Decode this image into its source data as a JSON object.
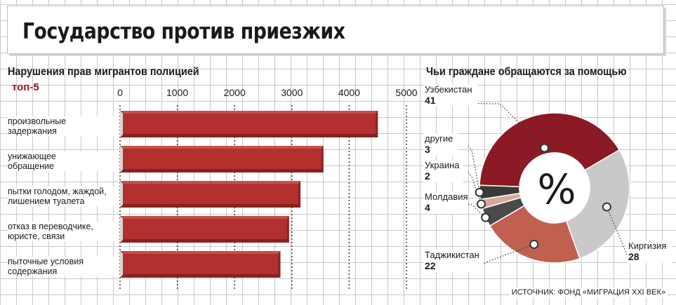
{
  "header": {
    "title": "Государство против приезжих"
  },
  "source": "ИСТОЧНИК: ФОНД «МИГРАЦИЯ XXI ВЕК»",
  "chart_data": [
    {
      "type": "bar",
      "orientation": "horizontal",
      "title": "Нарушения прав мигрантов полицией",
      "subtitle": "топ-5",
      "categories": [
        "произвольные задержания",
        "унижающее обращение",
        "пытки голодом, жаждой, лишением туалета",
        "отказ в переводчике, юристе, связи",
        "пыточные условия содержания"
      ],
      "category_lines": [
        [
          "произвольные",
          "задержания"
        ],
        [
          "унижающее",
          "обращение"
        ],
        [
          "пытки голодом, жаждой,",
          "лишением туалета"
        ],
        [
          "отказ в переводчике,",
          "юристе, связи"
        ],
        [
          "пыточные условия",
          "содержания"
        ]
      ],
      "values": [
        4500,
        3550,
        3150,
        2950,
        2800
      ],
      "ticks": [
        "0",
        "1000",
        "2000",
        "3000",
        "4000",
        "5000"
      ],
      "xlim": [
        0,
        5000
      ],
      "color": "#b3302f"
    },
    {
      "type": "pie",
      "style": "donut",
      "title": "Чьи граждане обращаются за помощью",
      "center_label": "%",
      "slices": [
        {
          "label": "Узбекистан",
          "value": 41,
          "color": "#8b1a24"
        },
        {
          "label": "Киргизия",
          "value": 28,
          "color": "#c9c9c9"
        },
        {
          "label": "Таджикистан",
          "value": 22,
          "color": "#c0614f"
        },
        {
          "label": "Молдавия",
          "value": 4,
          "color": "#4a4a4a"
        },
        {
          "label": "Украина",
          "value": 2,
          "color": "#d8a89a"
        },
        {
          "label": "другие",
          "value": 3,
          "color": "#3a3a3a"
        }
      ]
    }
  ]
}
